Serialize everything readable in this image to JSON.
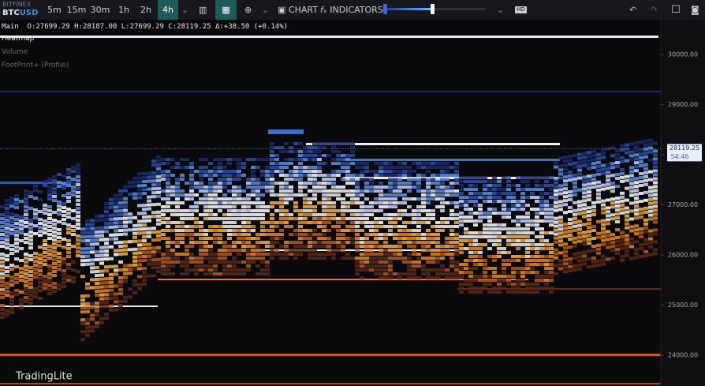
{
  "toolbar": {
    "exchange": "BITFINEX",
    "base": "BTC",
    "quote": "USD",
    "timeframes": [
      "5m",
      "15m",
      "30m",
      "1h",
      "2h",
      "4h"
    ],
    "active_timeframe": "4h",
    "chart_button": "CHART",
    "indicators_button": "INDICATORS",
    "quality": "HD"
  },
  "legend": {
    "pane": "Main",
    "ohlc": "O:27699.29 H:28187.00 L:27699.29 C:28119.25 Δ:+38.50 (+0.14%)",
    "layers": [
      "Heatmap",
      "Volume",
      "FootPrint+ (Profile)"
    ]
  },
  "price_axis": {
    "ylim": [
      23386,
      30693
    ],
    "ticks": [
      {
        "value": 24000,
        "label": "24000.00"
      },
      {
        "value": 25000,
        "label": "25000.00"
      },
      {
        "value": 26000,
        "label": "26000.00"
      },
      {
        "value": 27000,
        "label": "27000.00"
      },
      {
        "value": 28000,
        "label": "28000.00"
      },
      {
        "value": 29000,
        "label": "29000.00"
      },
      {
        "value": 30000,
        "label": "30000.00"
      }
    ],
    "current_price": {
      "value": 28119.25,
      "label": "28119.25"
    },
    "countdown": "54:46"
  },
  "watermark": "TradingLite"
}
